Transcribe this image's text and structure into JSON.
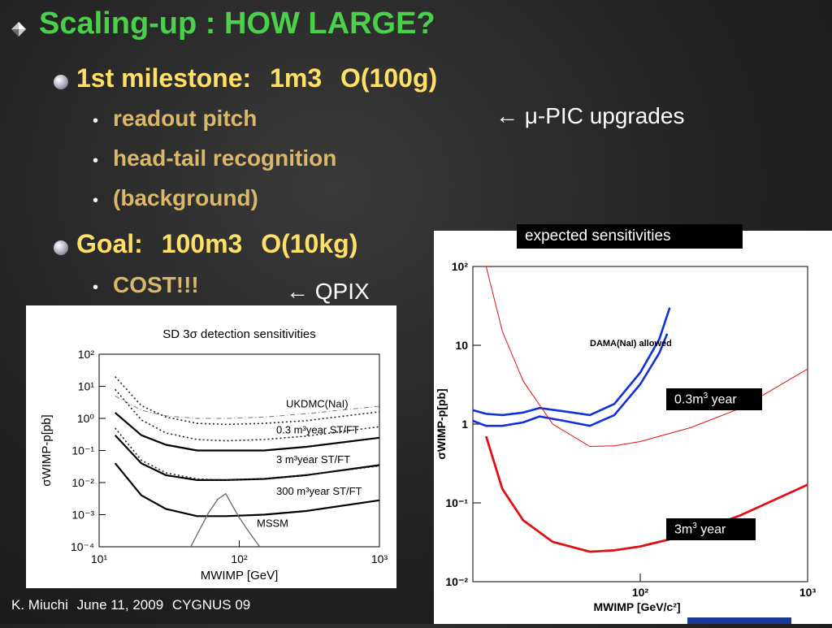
{
  "slide": {
    "title": "Scaling-up : HOW LARGE?",
    "milestone": {
      "label": "1st milestone:",
      "size": "1m3",
      "mass": "O(100g)",
      "items": [
        "readout pitch",
        "head-tail recognition",
        "(background)"
      ]
    },
    "goal": {
      "label": "Goal:",
      "size": "100m3",
      "mass": "O(10kg)",
      "items": [
        "COST!!!"
      ]
    },
    "notes": {
      "upic": "← μ-PIC upgrades",
      "qpix": "← QPIX"
    },
    "footer": {
      "author": "K. Miuchi",
      "date": "June 11, 2009",
      "event": "CYGNUS 09"
    },
    "sensitivity_label": "expected  sensitivities",
    "label_03": "0.3m",
    "label_3": "3m",
    "label_year": "year",
    "label_sup": "3"
  },
  "chart_data": [
    {
      "type": "line",
      "title": "SD  3σ detection sensitivities",
      "xlabel": "MWIMP  [GeV]",
      "ylabel": "σWIMP-p[pb]",
      "xscale": "log",
      "yscale": "log",
      "xlim": [
        10,
        1000
      ],
      "ylim": [
        0.0001,
        100
      ],
      "xticks": [
        "10¹",
        "10²",
        "10³"
      ],
      "yticks": [
        "10²",
        "10¹",
        "10⁰",
        "10⁻¹",
        "10⁻²",
        "10⁻³",
        "10⁻⁴"
      ],
      "annotations": [
        "UKDMC(NaI)",
        "0.3 m³year ST/FT",
        "3 m³year ST/FT",
        "300 m³year ST/FT",
        "MSSM"
      ],
      "series": [
        {
          "name": "UKDMC(NaI)",
          "style": "dashdot",
          "x": [
            13,
            20,
            30,
            50,
            80,
            150,
            300,
            1000
          ],
          "y": [
            5,
            1.8,
            1.2,
            1.0,
            1.0,
            1.1,
            1.4,
            2.4
          ]
        },
        {
          "name": "0.3 m³year ST/FT",
          "style": "dotted",
          "x": [
            13,
            20,
            30,
            50,
            80,
            150,
            300,
            1000
          ],
          "y": [
            20,
            2.5,
            1.1,
            0.7,
            0.65,
            0.7,
            0.85,
            1.6
          ]
        },
        {
          "name": "0.3 m³year ST/FT",
          "style": "solid",
          "x": [
            13,
            20,
            30,
            50,
            80,
            150,
            300,
            1000
          ],
          "y": [
            1.5,
            0.3,
            0.15,
            0.1,
            0.1,
            0.1,
            0.13,
            0.25
          ]
        },
        {
          "name": "3 m³year ST/FT",
          "style": "dotted",
          "x": [
            13,
            20,
            30,
            50,
            80,
            150,
            300,
            1000
          ],
          "y": [
            8,
            0.9,
            0.35,
            0.22,
            0.2,
            0.22,
            0.28,
            0.55
          ]
        },
        {
          "name": "3 m³year ST/FT",
          "style": "solid",
          "x": [
            13,
            20,
            30,
            50,
            80,
            150,
            300,
            1000
          ],
          "y": [
            0.3,
            0.04,
            0.017,
            0.012,
            0.012,
            0.013,
            0.017,
            0.035
          ]
        },
        {
          "name": "300 m³year ST/FT",
          "style": "dotted",
          "x": [
            13,
            20,
            30,
            50,
            80,
            150,
            300,
            1000
          ],
          "y": [
            0.5,
            0.05,
            0.02,
            0.013,
            0.012,
            0.013,
            0.017,
            0.033
          ]
        },
        {
          "name": "300 m³year ST/FT",
          "style": "solid",
          "x": [
            13,
            20,
            30,
            50,
            80,
            150,
            300,
            1000
          ],
          "y": [
            0.04,
            0.004,
            0.0015,
            0.0009,
            0.0009,
            0.001,
            0.0013,
            0.0028
          ]
        },
        {
          "name": "MSSM",
          "style": "solid-gray",
          "x": [
            45,
            60,
            70,
            80,
            100,
            120,
            140
          ],
          "y": [
            0.0001,
            0.0011,
            0.003,
            0.0045,
            0.0008,
            0.00025,
            0.0001
          ]
        }
      ]
    },
    {
      "type": "line",
      "title": "",
      "xlabel": "MWIMP [GeV/c²]",
      "ylabel": "σWIMP-p[pb]",
      "xscale": "log",
      "yscale": "log",
      "xlim": [
        10,
        1000
      ],
      "ylim": [
        0.01,
        100
      ],
      "xticks": [
        "10²",
        "10³"
      ],
      "yticks": [
        "10²",
        "10",
        "1",
        "10⁻¹",
        "10⁻²"
      ],
      "annotations": [
        "DAMA(NaI) allowed"
      ],
      "series": [
        {
          "name": "DAMA(NaI) allowed",
          "style": "blue-upper",
          "x": [
            10,
            12,
            15,
            20,
            25,
            35,
            50,
            70,
            100,
            130,
            150
          ],
          "y": [
            1.5,
            1.35,
            1.3,
            1.4,
            1.6,
            1.45,
            1.3,
            1.8,
            4.5,
            12,
            30
          ]
        },
        {
          "name": "DAMA(NaI) allowed",
          "style": "blue-lower",
          "x": [
            10,
            12,
            15,
            20,
            25,
            35,
            50,
            70,
            100,
            130,
            145
          ],
          "y": [
            1.1,
            0.95,
            0.95,
            1.05,
            1.25,
            1.1,
            0.95,
            1.3,
            3.2,
            8,
            14
          ]
        },
        {
          "name": "0.3m³ year",
          "style": "red-thin",
          "x": [
            12,
            15,
            20,
            30,
            50,
            70,
            100,
            200,
            400,
            1000
          ],
          "y": [
            100,
            15,
            3.5,
            1.0,
            0.52,
            0.53,
            0.6,
            0.9,
            1.6,
            5.0
          ]
        },
        {
          "name": "3m³ year",
          "style": "red-thick",
          "x": [
            12,
            15,
            20,
            30,
            50,
            70,
            100,
            200,
            400,
            1000
          ],
          "y": [
            0.7,
            0.15,
            0.06,
            0.032,
            0.024,
            0.025,
            0.028,
            0.04,
            0.07,
            0.17
          ]
        }
      ]
    }
  ]
}
